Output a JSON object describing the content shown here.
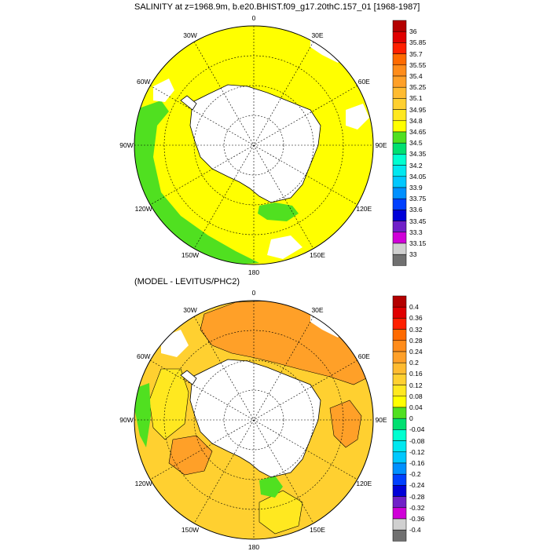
{
  "titles": {
    "top": "SALINITY at z=1968.9m, b.e20.BHIST.f09_g17.20thC.157_01 [1968-1987]",
    "bottom": "(MODEL - LEVITUS/PHC2)"
  },
  "longitude_labels": [
    "0",
    "30E",
    "60E",
    "90E",
    "120E",
    "150E",
    "180",
    "150W",
    "120W",
    "90W",
    "60W",
    "30W"
  ],
  "colorbar_top": {
    "labels": [
      "36",
      "35.85",
      "35.7",
      "35.55",
      "35.4",
      "35.25",
      "35.1",
      "34.95",
      "34.8",
      "34.65",
      "34.5",
      "34.35",
      "34.2",
      "34.05",
      "33.9",
      "33.75",
      "33.6",
      "33.45",
      "33.3",
      "33.15",
      "33"
    ]
  },
  "colorbar_bottom": {
    "labels": [
      "0.4",
      "0.36",
      "0.32",
      "0.28",
      "0.24",
      "0.2",
      "0.16",
      "0.12",
      "0.08",
      "0.04",
      "0",
      "-0.04",
      "-0.08",
      "-0.12",
      "-0.16",
      "-0.2",
      "-0.24",
      "-0.28",
      "-0.32",
      "-0.36",
      "-0.4"
    ]
  },
  "colors": {
    "scale": [
      "#b40000",
      "#e00000",
      "#ff2000",
      "#ff6a00",
      "#ff8c1a",
      "#ffa028",
      "#ffbb30",
      "#ffd030",
      "#ffe820",
      "#ffff00",
      "#50e020",
      "#00e070",
      "#00ffd0",
      "#00e8f0",
      "#00c8ff",
      "#0090ff",
      "#0040ff",
      "#0000d8",
      "#7020c8",
      "#d000d8",
      "#d0d0d0",
      "#707070"
    ],
    "land": "#ffffff",
    "coast": "#000000",
    "top_main_field": "#ffff00",
    "top_low_field": "#50e020",
    "bottom_main_field": "#ffd030",
    "bottom_high_field": "#ffa028",
    "bottom_low_field": "#ffe820",
    "bottom_min_field": "#50e020"
  }
}
